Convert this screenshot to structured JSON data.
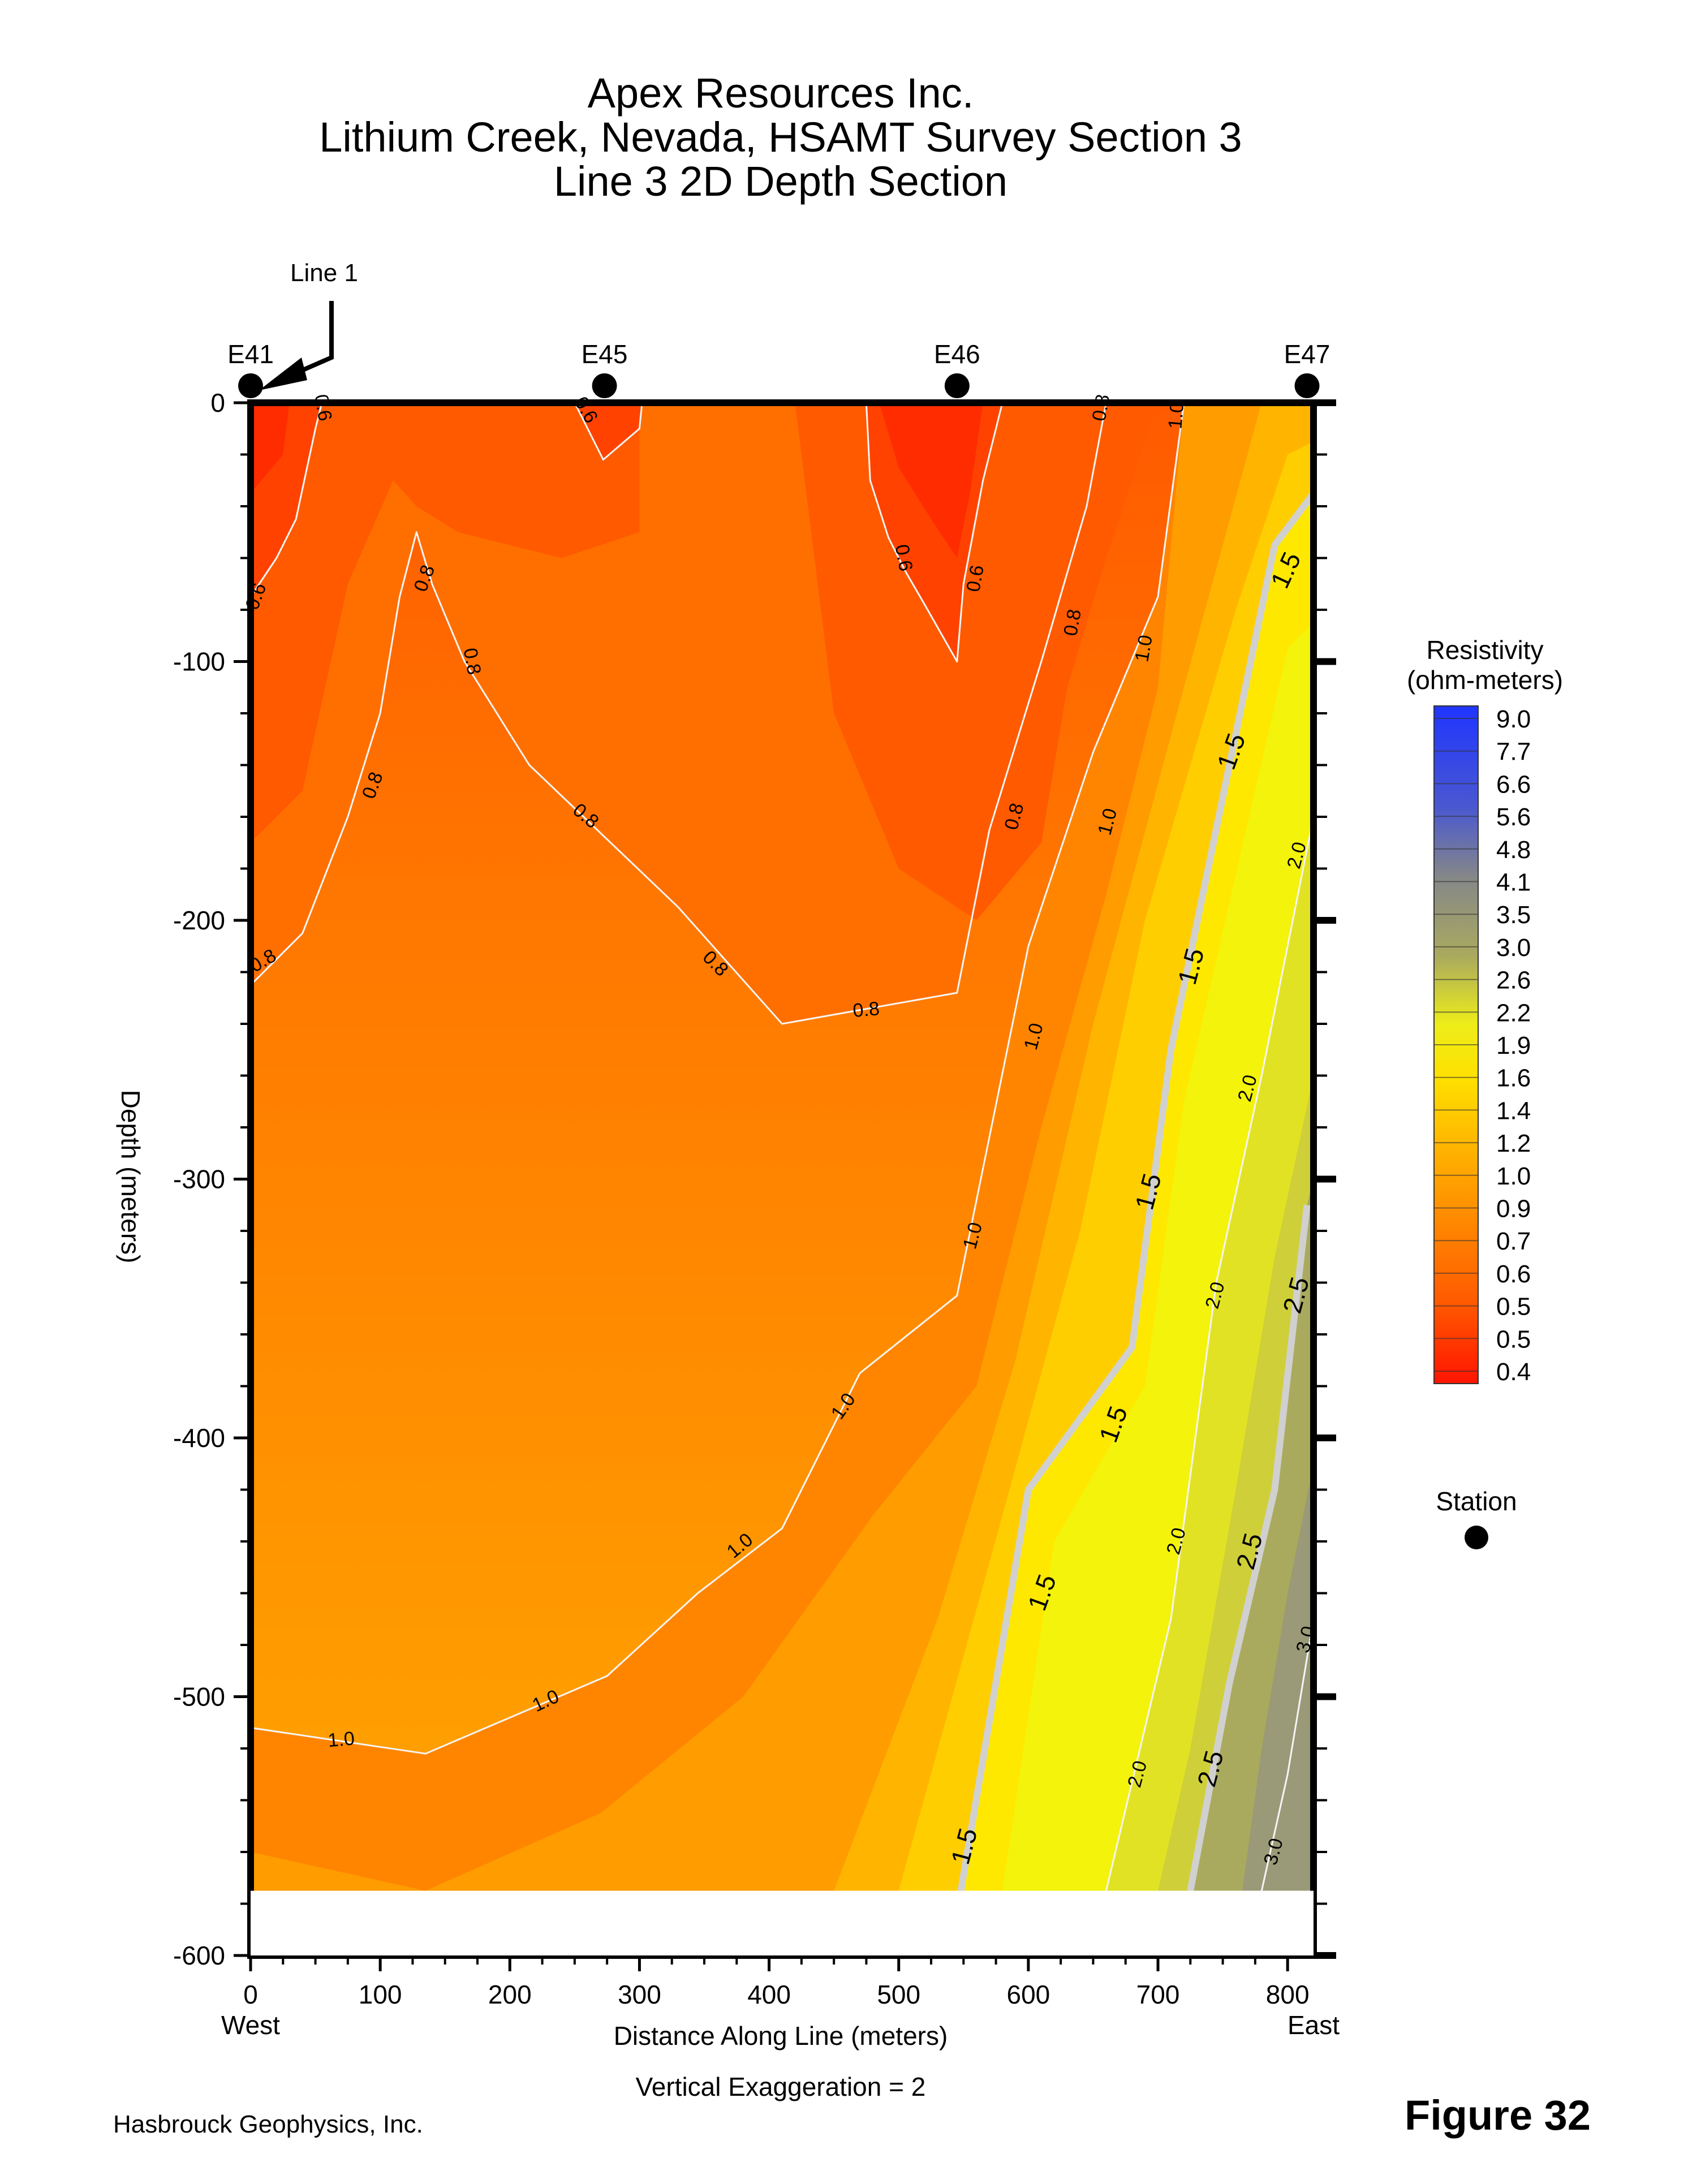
{
  "chart_data": {
    "type": "heatmap",
    "title": [
      "Apex Resources Inc.",
      "Lithium Creek, Nevada, HSAMT Survey Section 3",
      "Line 3 2D Depth Section"
    ],
    "xlabel": "Distance Along Line (meters)",
    "ylabel": "Depth (meters)",
    "xlim": [
      0,
      820
    ],
    "ylim": [
      -600,
      0
    ],
    "data_bottom": -575,
    "x_ticks": [
      "0",
      "100",
      "200",
      "300",
      "400",
      "500",
      "600",
      "700",
      "800"
    ],
    "y_ticks": [
      "0",
      "-100",
      "-200",
      "-300",
      "-400",
      "-500",
      "-600"
    ],
    "x_tick_values": [
      0,
      100,
      200,
      300,
      400,
      500,
      600,
      700,
      800
    ],
    "y_tick_values": [
      0,
      -100,
      -200,
      -300,
      -400,
      -500,
      -600
    ],
    "west_label": "West",
    "east_label": "East",
    "vertical_exaggeration": "Vertical Exaggeration = 2",
    "stations": [
      {
        "name": "E41",
        "x": 0
      },
      {
        "name": "E45",
        "x": 273
      },
      {
        "name": "E46",
        "x": 545
      },
      {
        "name": "E47",
        "x": 815
      }
    ],
    "line_marker": {
      "label": "Line 1",
      "x": 0
    },
    "colorbar": {
      "title": [
        "Resistivity",
        "(ohm-meters)"
      ],
      "levels": [
        "9.0",
        "7.7",
        "6.6",
        "5.6",
        "4.8",
        "4.1",
        "3.5",
        "3.0",
        "2.6",
        "2.2",
        "1.9",
        "1.6",
        "1.4",
        "1.2",
        "1.0",
        "0.9",
        "0.7",
        "0.6",
        "0.5",
        "0.5",
        "0.4"
      ],
      "colors": [
        "#1f35ff",
        "#3a48e8",
        "#4a58d0",
        "#5d66b8",
        "#6f73a2",
        "#84868a",
        "#9a9a78",
        "#aaaa5e",
        "#cfcf3a",
        "#e2e224",
        "#f3f30c",
        "#ffe800",
        "#ffce00",
        "#ffb500",
        "#ff9c00",
        "#ff8500",
        "#ff6f00",
        "#ff5a00",
        "#ff4200",
        "#ff2c00",
        "#ff1400"
      ]
    },
    "station_legend": "Station",
    "contours": [
      {
        "label": "0.6",
        "points": [
          [
            0,
            -75
          ],
          [
            20,
            -60
          ],
          [
            35,
            -45
          ],
          [
            50,
            -10
          ],
          [
            55,
            0
          ]
        ],
        "labels": [
          [
            5,
            -75,
            -70
          ],
          [
            55,
            -2,
            80
          ]
        ]
      },
      {
        "label": "0.6",
        "points": [
          [
            250,
            0
          ],
          [
            272,
            -22
          ],
          [
            300,
            -10
          ],
          [
            302,
            0
          ]
        ],
        "labels": [
          [
            258,
            -3,
            60
          ]
        ]
      },
      {
        "label": "0.6",
        "points": [
          [
            475,
            0
          ],
          [
            478,
            -30
          ],
          [
            492,
            -52
          ],
          [
            505,
            -65
          ],
          [
            520,
            -78
          ],
          [
            545,
            -100
          ],
          [
            550,
            -70
          ],
          [
            565,
            -30
          ],
          [
            580,
            0
          ]
        ],
        "labels": [
          [
            503,
            -60,
            80
          ],
          [
            560,
            -68,
            -80
          ]
        ]
      },
      {
        "label": "0.8",
        "points": [
          [
            0,
            -225
          ],
          [
            40,
            -205
          ],
          [
            75,
            -160
          ],
          [
            100,
            -120
          ],
          [
            115,
            -75
          ],
          [
            128,
            -50
          ],
          [
            140,
            -70
          ],
          [
            165,
            -100
          ],
          [
            215,
            -140
          ],
          [
            330,
            -195
          ],
          [
            410,
            -240
          ],
          [
            545,
            -228
          ],
          [
            570,
            -165
          ],
          [
            610,
            -100
          ],
          [
            645,
            -40
          ],
          [
            660,
            0
          ]
        ],
        "labels": [
          [
            10,
            -216,
            -30
          ],
          [
            95,
            -148,
            -70
          ],
          [
            135,
            -68,
            -70
          ],
          [
            170,
            -100,
            80
          ],
          [
            258,
            -160,
            40
          ],
          [
            358,
            -217,
            45
          ],
          [
            475,
            -235,
            -5
          ],
          [
            590,
            -160,
            -75
          ],
          [
            635,
            -85,
            -80
          ],
          [
            657,
            -2,
            -80
          ]
        ]
      },
      {
        "label": "1.0",
        "points": [
          [
            0,
            -512
          ],
          [
            135,
            -522
          ],
          [
            275,
            -492
          ],
          [
            345,
            -460
          ],
          [
            410,
            -435
          ],
          [
            470,
            -375
          ],
          [
            545,
            -345
          ],
          [
            600,
            -210
          ],
          [
            650,
            -135
          ],
          [
            700,
            -75
          ],
          [
            720,
            0
          ]
        ],
        "labels": [
          [
            70,
            -517,
            -5
          ],
          [
            228,
            -502,
            -25
          ],
          [
            378,
            -442,
            -40
          ],
          [
            458,
            -388,
            -55
          ],
          [
            558,
            -322,
            -75
          ],
          [
            605,
            -245,
            -75
          ],
          [
            662,
            -162,
            -75
          ],
          [
            690,
            -95,
            -80
          ],
          [
            715,
            -5,
            -85
          ]
        ]
      },
      {
        "label": "1.5",
        "points": [
          [
            548,
            -575
          ],
          [
            600,
            -420
          ],
          [
            680,
            -365
          ],
          [
            710,
            -250
          ],
          [
            790,
            -55
          ],
          [
            820,
            -35
          ]
        ],
        "labels": [
          [
            552,
            -558,
            -75
          ],
          [
            612,
            -460,
            -70
          ],
          [
            667,
            -395,
            -70
          ],
          [
            694,
            -305,
            -75
          ],
          [
            727,
            -218,
            -75
          ],
          [
            758,
            -135,
            -70
          ],
          [
            800,
            -65,
            -65
          ]
        ]
      },
      {
        "label": "2.0",
        "points": [
          [
            660,
            -575
          ],
          [
            710,
            -470
          ],
          [
            745,
            -340
          ],
          [
            780,
            -260
          ],
          [
            820,
            -160
          ]
        ],
        "labels": [
          [
            685,
            -530,
            -75
          ],
          [
            715,
            -440,
            -75
          ],
          [
            745,
            -345,
            -75
          ],
          [
            770,
            -265,
            -75
          ],
          [
            808,
            -175,
            -75
          ]
        ]
      },
      {
        "label": "2.5",
        "points": [
          [
            725,
            -575
          ],
          [
            755,
            -495
          ],
          [
            790,
            -420
          ],
          [
            815,
            -310
          ]
        ],
        "labels": [
          [
            742,
            -528,
            -75
          ],
          [
            772,
            -444,
            -75
          ],
          [
            808,
            -345,
            -75
          ]
        ]
      },
      {
        "label": "3.0",
        "points": [
          [
            780,
            -575
          ],
          [
            800,
            -530
          ],
          [
            820,
            -470
          ]
        ],
        "labels": [
          [
            790,
            -560,
            -75
          ],
          [
            815,
            -478,
            -75
          ]
        ]
      }
    ]
  },
  "credit": "Hasbrouck Geophysics, Inc.",
  "figure_label": "Figure 32"
}
